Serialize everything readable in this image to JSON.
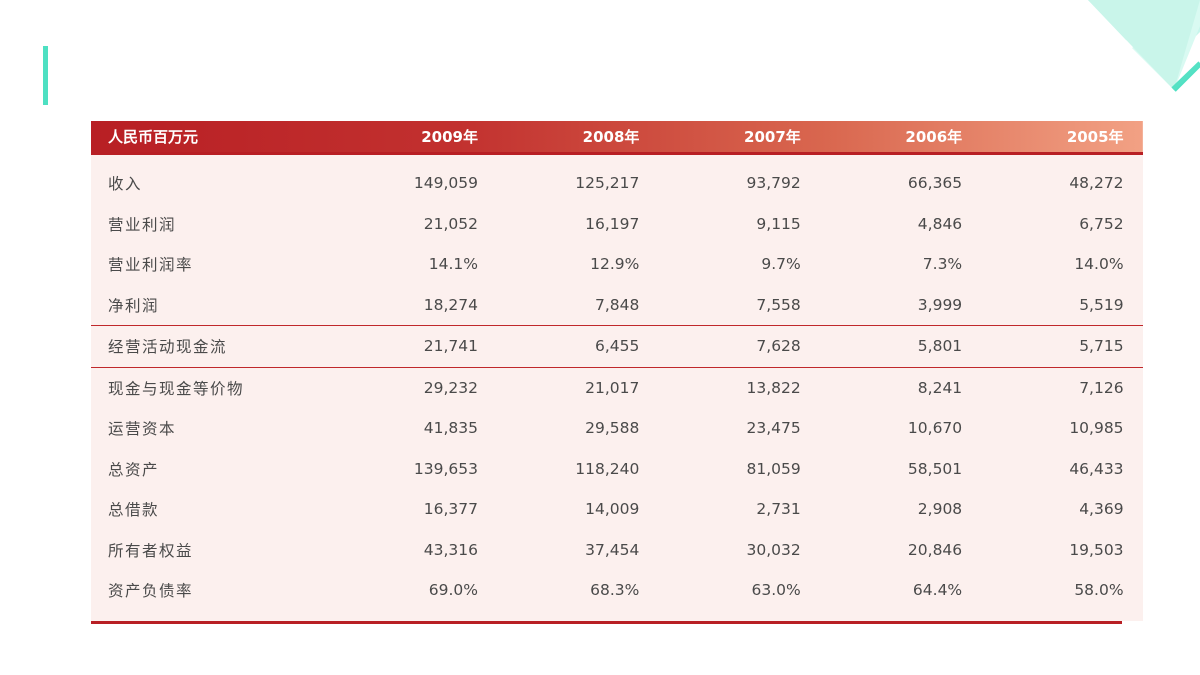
{
  "colors": {
    "accent": "#4ee0c2",
    "header_dark": "#b81f24",
    "header_light": "#f2a184",
    "body_bg": "#fcf0ee",
    "rule": "#c0282b"
  },
  "table": {
    "headers": [
      "人民币百万元",
      "2009年",
      "2008年",
      "2007年",
      "2006年",
      "2005年"
    ],
    "rows": [
      [
        "收入",
        "149,059",
        "125,217",
        "93,792",
        "66,365",
        "48,272"
      ],
      [
        "营业利润",
        "21,052",
        "16,197",
        "9,115",
        "4,846",
        "6,752"
      ],
      [
        "营业利润率",
        "14.1%",
        "12.9%",
        "9.7%",
        "7.3%",
        "14.0%"
      ],
      [
        "净利润",
        "18,274",
        "7,848",
        "7,558",
        "3,999",
        "5,519"
      ],
      [
        "经营活动现金流",
        "21,741",
        "6,455",
        "7,628",
        "5,801",
        "5,715"
      ],
      [
        "现金与现金等价物",
        "29,232",
        "21,017",
        "13,822",
        "8,241",
        "7,126"
      ],
      [
        "运营资本",
        "41,835",
        "29,588",
        "23,475",
        "10,670",
        "10,985"
      ],
      [
        "总资产",
        "139,653",
        "118,240",
        "81,059",
        "58,501",
        "46,433"
      ],
      [
        "总借款",
        "16,377",
        "14,009",
        "2,731",
        "2,908",
        "4,369"
      ],
      [
        "所有者权益",
        "43,316",
        "37,454",
        "30,032",
        "20,846",
        "19,503"
      ],
      [
        "资产负债率",
        "69.0%",
        "68.3%",
        "63.0%",
        "64.4%",
        "58.0%"
      ]
    ]
  }
}
